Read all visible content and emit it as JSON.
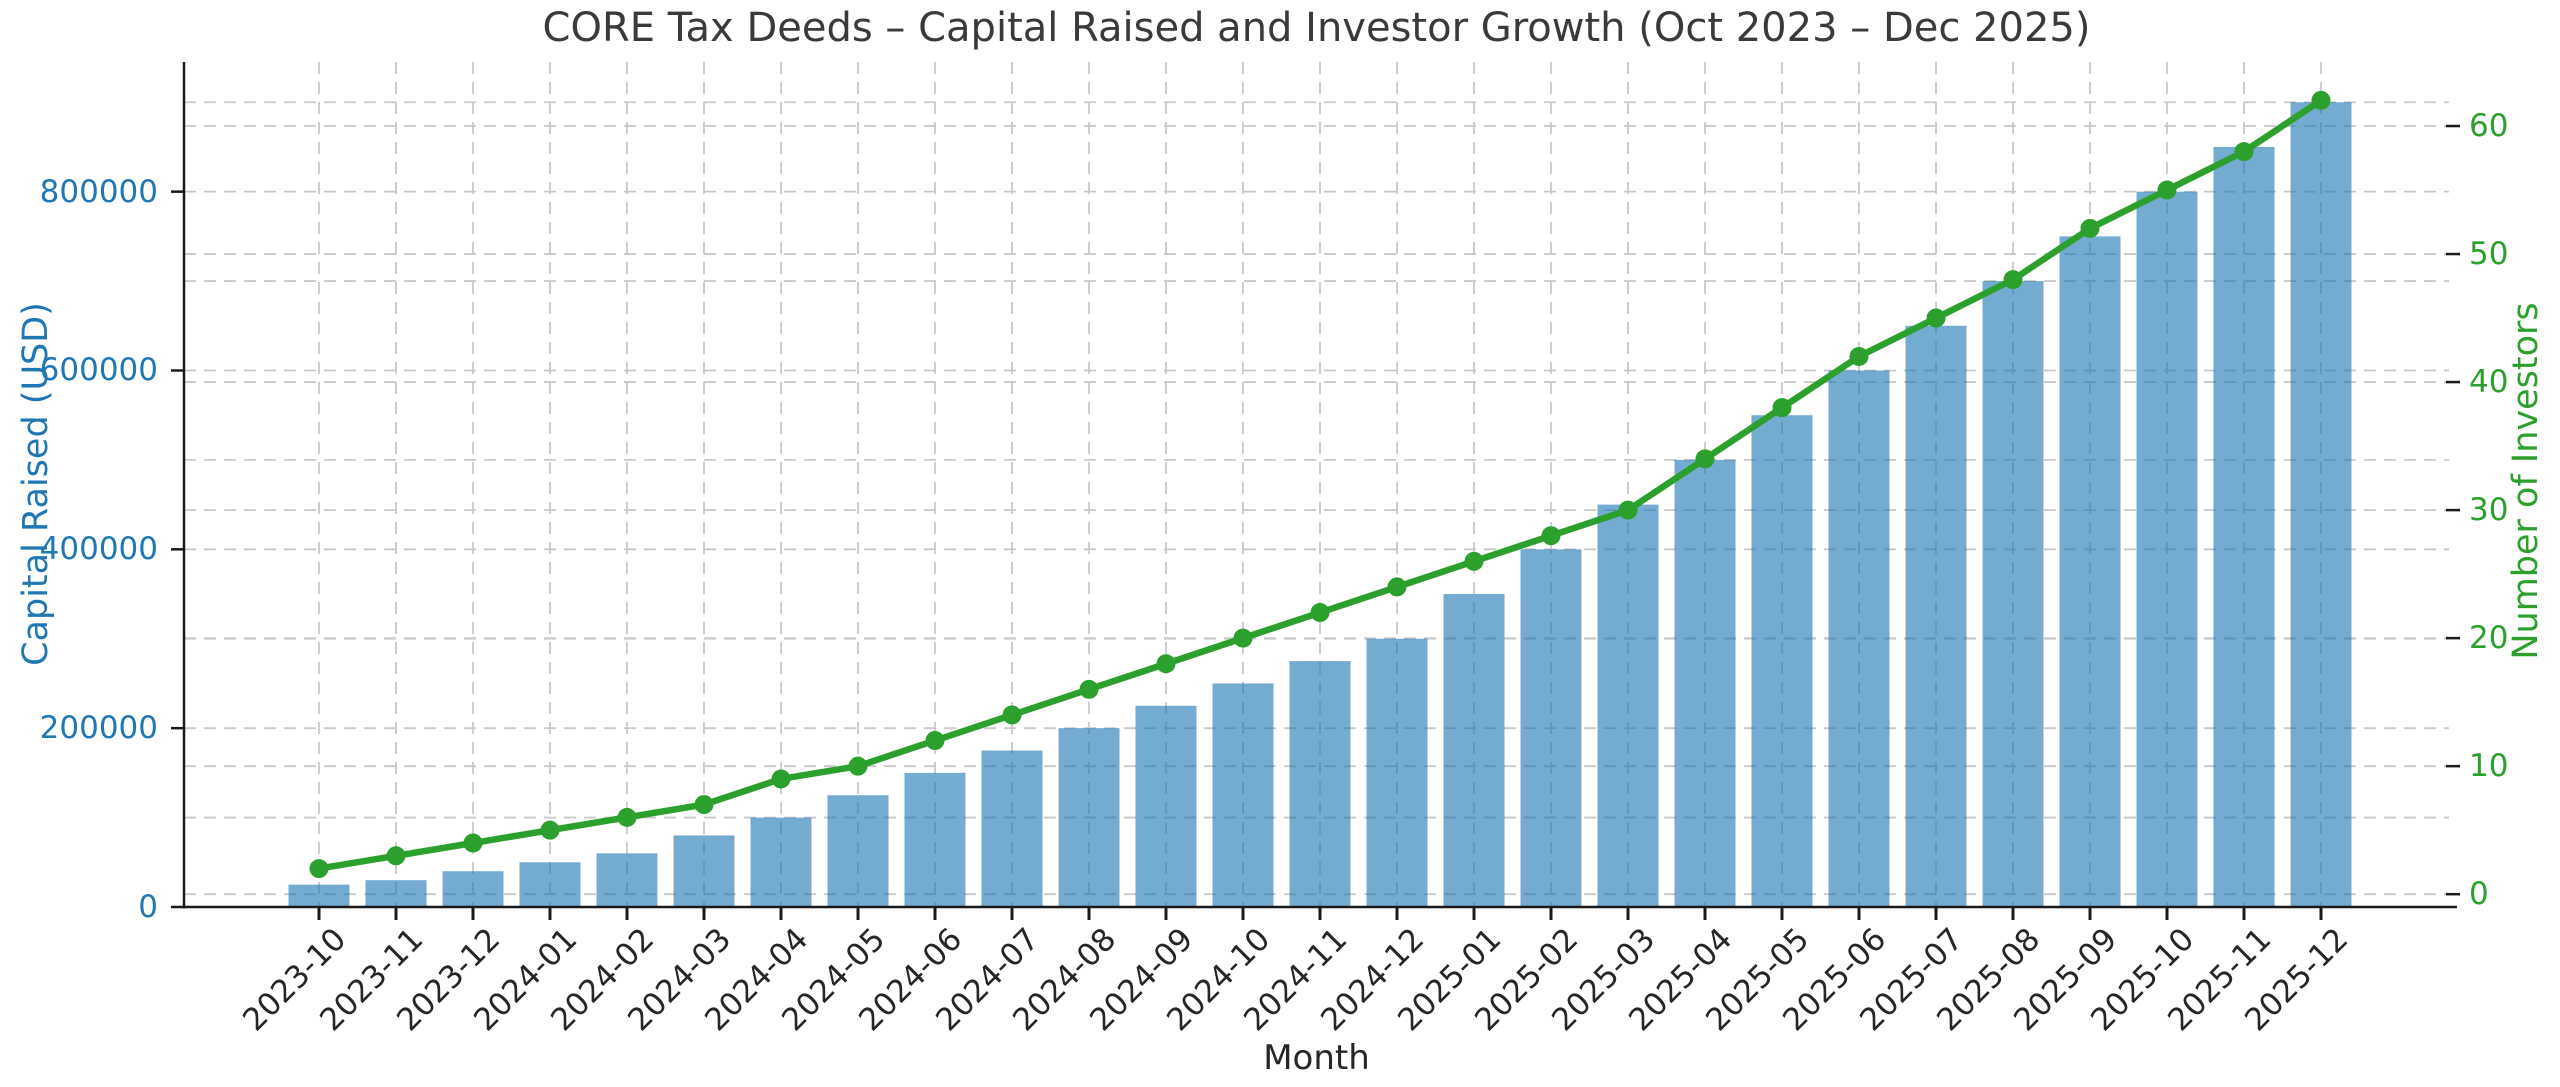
{
  "chart_data": {
    "type": "bar+line",
    "title": "CORE Tax Deeds – Capital Raised and Investor Growth (Oct 2023 – Dec 2025)",
    "xlabel": "Month",
    "ylabel_left": "Capital Raised (USD)",
    "ylabel_right": "Number of Investors",
    "categories": [
      "2023-10",
      "2023-11",
      "2023-12",
      "2024-01",
      "2024-02",
      "2024-03",
      "2024-04",
      "2024-05",
      "2024-06",
      "2024-07",
      "2024-08",
      "2024-09",
      "2024-10",
      "2024-11",
      "2024-12",
      "2025-01",
      "2025-02",
      "2025-03",
      "2025-04",
      "2025-05",
      "2025-06",
      "2025-07",
      "2025-08",
      "2025-09",
      "2025-10",
      "2025-11",
      "2025-12"
    ],
    "series": [
      {
        "name": "Capital Raised (USD)",
        "type": "bar",
        "axis": "left",
        "values": [
          25000,
          30000,
          40000,
          50000,
          60000,
          80000,
          100000,
          125000,
          150000,
          175000,
          200000,
          225000,
          250000,
          275000,
          300000,
          350000,
          400000,
          450000,
          500000,
          550000,
          600000,
          650000,
          700000,
          750000,
          800000,
          850000,
          900000
        ]
      },
      {
        "name": "Number of Investors",
        "type": "line",
        "axis": "right",
        "values": [
          2,
          3,
          4,
          5,
          6,
          7,
          9,
          10,
          12,
          14,
          16,
          18,
          20,
          22,
          24,
          26,
          28,
          30,
          34,
          38,
          42,
          45,
          48,
          52,
          55,
          58,
          62
        ]
      }
    ],
    "ylim_left": [
      0,
      945000
    ],
    "ylim_right": [
      -1,
      65
    ],
    "yticks_left": [
      0,
      200000,
      400000,
      600000,
      800000
    ],
    "ytick_labels_left": [
      "0",
      "200000",
      "400000",
      "600000",
      "800000"
    ],
    "yticks_right": [
      0,
      10,
      20,
      30,
      40,
      50,
      60
    ],
    "ytick_labels_right": [
      "0",
      "10",
      "20",
      "30",
      "40",
      "50",
      "60"
    ],
    "gridlines_left_step": 100000,
    "gridlines_right_step": 10,
    "grid": true,
    "grid_style": "dashed",
    "legend": "none",
    "x_tick_rotation_deg": 45
  },
  "colors": {
    "background": "#ffffff",
    "bar_fill": "rgba(31,119,180,0.62)",
    "bar_fill_flat": "#79add2",
    "line": "#2ca02c",
    "marker": "#2ca02c",
    "left_axis_text": "#1f77b4",
    "right_axis_text": "#2ca02c",
    "grid": "#c9c9c9",
    "spine": "#1a1a1a",
    "title_text": "#3a3a3a",
    "dark_text": "#262626"
  }
}
